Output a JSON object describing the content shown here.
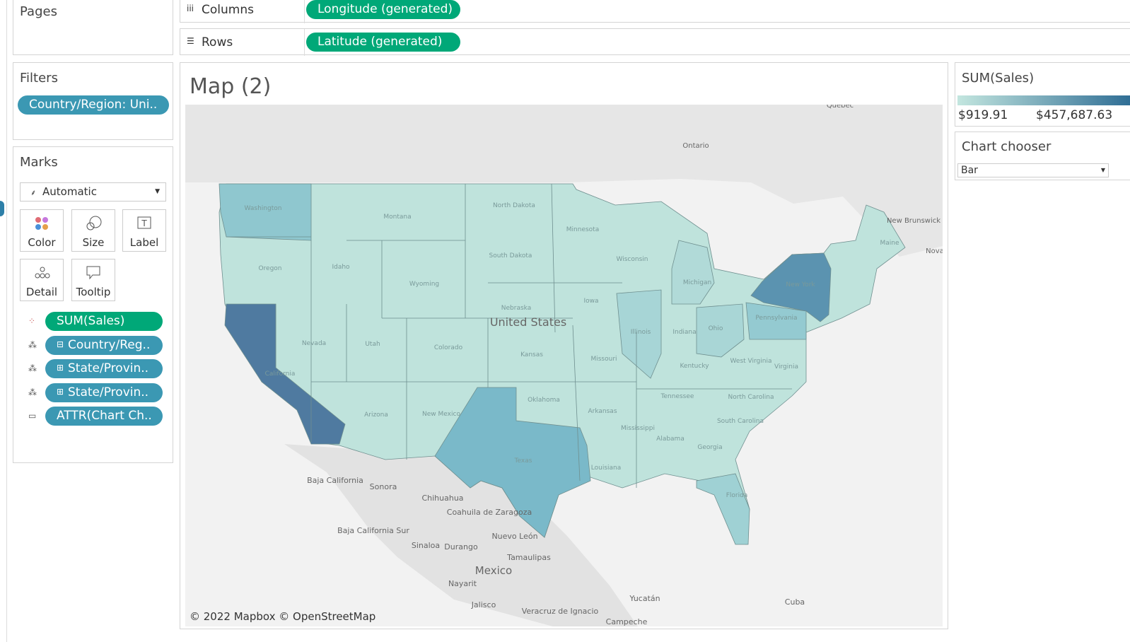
{
  "shelves": {
    "pages": {
      "title": "Pages"
    },
    "columns": {
      "label": "Columns",
      "pill": "Longitude (generated)"
    },
    "rows": {
      "label": "Rows",
      "pill": "Latitude (generated)"
    }
  },
  "filters": {
    "title": "Filters",
    "pills": [
      "Country/Region: Uni.."
    ]
  },
  "marks": {
    "title": "Marks",
    "mark_type": "Automatic",
    "buttons": [
      "Color",
      "Size",
      "Label",
      "Detail",
      "Tooltip"
    ],
    "pills": [
      "SUM(Sales)",
      "Country/Reg..",
      "State/Provin..",
      "State/Provin..",
      "ATTR(Chart Ch.."
    ]
  },
  "view": {
    "title": "Map (2)",
    "attribution": "© 2022 Mapbox © OpenStreetMap",
    "labels": [
      "Quebec",
      "Ontario",
      "New Brunswick",
      "Nova",
      "Washington",
      "Montana",
      "North Dakota",
      "Minnesota",
      "South Dakota",
      "Wyoming",
      "Oregon",
      "Idaho",
      "Nebraska",
      "United States",
      "Iowa",
      "Wisconsin",
      "Michigan",
      "New York",
      "Illinois",
      "Indiana",
      "Ohio",
      "Pennsylvania",
      "Nevada",
      "Utah",
      "Colorado",
      "Kansas",
      "Missouri",
      "Kentucky",
      "West Virginia",
      "Virginia",
      "California",
      "Oklahoma",
      "Tennessee",
      "North Carolina",
      "Arkansas",
      "Arizona",
      "New Mexico",
      "South Carolina",
      "Mississippi",
      "Alabama",
      "Georgia",
      "Texas",
      "Louisiana",
      "Florida",
      "Maine",
      "Baja California",
      "Sonora",
      "Chihuahua",
      "Coahuila de Zaragoza",
      "Baja California Sur",
      "Nuevo León",
      "Sinaloa",
      "Durango",
      "Tamaulipas",
      "Mexico",
      "Nayarit",
      "Jalisco",
      "Veracruz de Ignacio",
      "Yucatán",
      "Campeche",
      "Cuba"
    ]
  },
  "legend": {
    "title": "SUM(Sales)",
    "min_label": "$919.91",
    "max_label": "$457,687.63"
  },
  "chart_chooser": {
    "title": "Chart chooser",
    "value": "Bar"
  }
}
